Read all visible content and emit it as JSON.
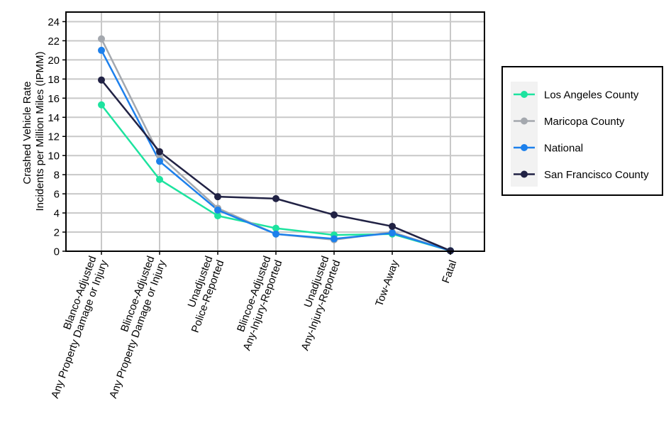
{
  "chart_data": {
    "type": "line",
    "ylabel_lines": [
      "Crashed Vehicle Rate",
      "Incidents per Million Miles (IPMM)"
    ],
    "ylim": [
      0,
      25
    ],
    "yticks": [
      0,
      2,
      4,
      6,
      8,
      10,
      12,
      14,
      16,
      18,
      20,
      22,
      24
    ],
    "grid": true,
    "legend_position": "right",
    "categories": [
      [
        "Blanco-Adjusted",
        "Any Property Damage or Injury"
      ],
      [
        "Blincoe-Adjusted",
        "Any Property Damage or Injury"
      ],
      [
        "Unadjusted",
        "Police-Reported"
      ],
      [
        "Blincoe-Adjusted",
        "Any-Injury-Reported"
      ],
      [
        "Unadjusted",
        "Any-Injury-Reported"
      ],
      [
        "Tow-Away"
      ],
      [
        "Fatal"
      ]
    ],
    "series": [
      {
        "name": "Los Angeles County",
        "color": "#1de39f",
        "values": [
          15.3,
          7.5,
          3.7,
          2.4,
          1.7,
          1.8,
          0.05
        ]
      },
      {
        "name": "Maricopa County",
        "color": "#a4a8ae",
        "values": [
          22.2,
          10.0,
          4.5,
          1.8,
          1.2,
          2.0,
          0.05
        ]
      },
      {
        "name": "National",
        "color": "#1d80ec",
        "values": [
          21.0,
          9.4,
          4.3,
          1.8,
          1.3,
          1.9,
          0.05
        ]
      },
      {
        "name": "San Francisco County",
        "color": "#212244",
        "values": [
          17.9,
          10.4,
          5.7,
          5.5,
          3.8,
          2.6,
          0.05
        ]
      }
    ]
  }
}
